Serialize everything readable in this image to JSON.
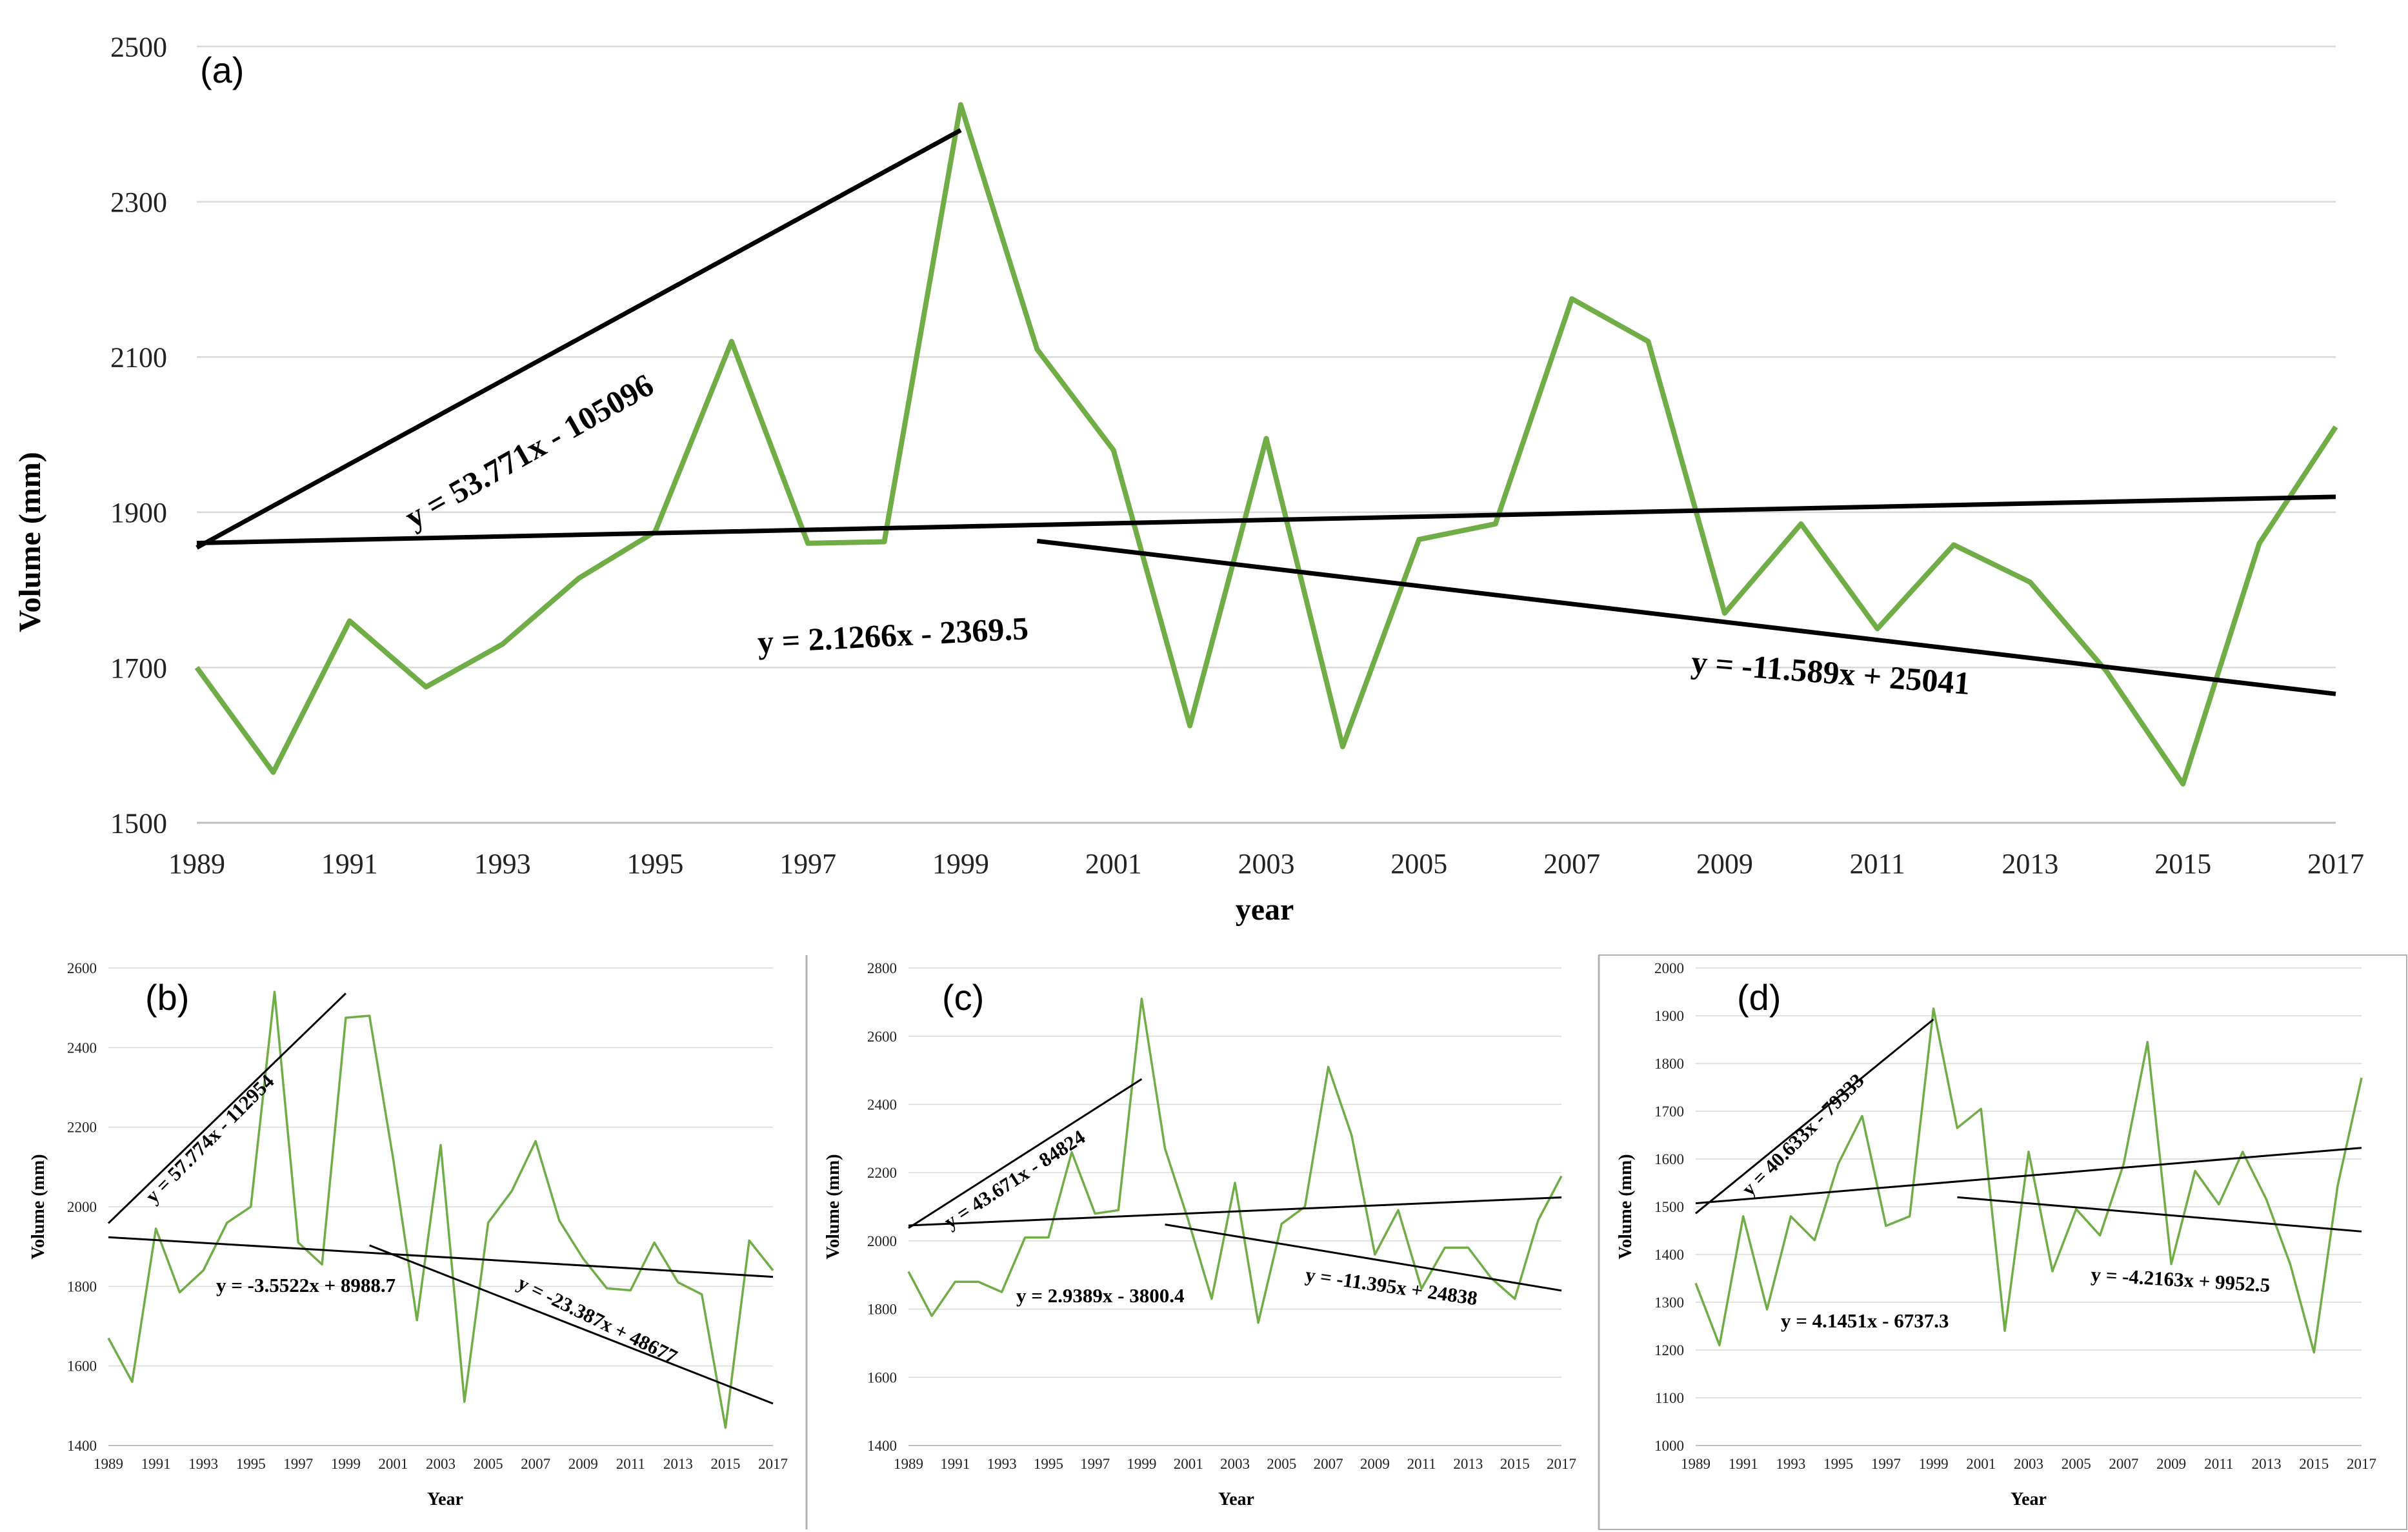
{
  "figure": {
    "panel_tags": [
      "(a)",
      "(b)",
      "(c)",
      "(d)"
    ]
  },
  "colors": {
    "series": "#70AD47",
    "trend": "#000000",
    "grid": "#d9d9d9",
    "divider": "#b0b0b0"
  },
  "chart_data": [
    {
      "id": "a",
      "type": "line",
      "tag": "(a)",
      "xlabel": "year",
      "ylabel": "Volume  (mm)",
      "ylim": [
        1500,
        2500
      ],
      "yticks": [
        1500,
        1700,
        1900,
        2100,
        2300,
        2500
      ],
      "xlim": [
        1989,
        2017
      ],
      "xticks": [
        1989,
        1991,
        1993,
        1995,
        1997,
        1999,
        2001,
        2003,
        2005,
        2007,
        2009,
        2011,
        2013,
        2015,
        2017
      ],
      "grid": true,
      "x": [
        1989,
        1990,
        1991,
        1992,
        1993,
        1994,
        1995,
        1996,
        1997,
        1998,
        1999,
        2000,
        2001,
        2002,
        2003,
        2004,
        2005,
        2006,
        2007,
        2008,
        2009,
        2010,
        2011,
        2012,
        2013,
        2014,
        2015,
        2016,
        2017
      ],
      "values": [
        1700,
        1565,
        1760,
        1675,
        1730,
        1815,
        1875,
        2120,
        1860,
        1862,
        2425,
        2110,
        1980,
        1625,
        1995,
        1598,
        1865,
        1885,
        2175,
        2120,
        1770,
        1885,
        1750,
        1858,
        1810,
        1695,
        1550,
        1860,
        2010
      ],
      "trendlines": [
        {
          "label": "y = 53.771x - 105096",
          "slope": 53.771,
          "intercept": -105096,
          "x_from": 1989,
          "x_to": 1999
        },
        {
          "label": "y = 2.1266x - 2369.5",
          "slope": 2.1266,
          "intercept": -2369.5,
          "x_from": 1989,
          "x_to": 2017
        },
        {
          "label": "y = -11.589x + 25041",
          "slope": -11.589,
          "intercept": 25041,
          "x_from": 2000,
          "x_to": 2017
        }
      ]
    },
    {
      "id": "b",
      "type": "line",
      "tag": "(b)",
      "xlabel": "Year",
      "ylabel": "Volume (mm)",
      "ylim": [
        1400,
        2600
      ],
      "yticks": [
        1400,
        1600,
        1800,
        2000,
        2200,
        2400,
        2600
      ],
      "xlim": [
        1989,
        2017
      ],
      "xticks": [
        1989,
        1991,
        1993,
        1995,
        1997,
        1999,
        2001,
        2003,
        2005,
        2007,
        2009,
        2011,
        2013,
        2015,
        2017
      ],
      "grid": true,
      "x": [
        1989,
        1990,
        1991,
        1992,
        1993,
        1994,
        1995,
        1996,
        1997,
        1998,
        1999,
        2000,
        2001,
        2002,
        2003,
        2004,
        2005,
        2006,
        2007,
        2008,
        2009,
        2010,
        2011,
        2012,
        2013,
        2014,
        2015,
        2016,
        2017
      ],
      "values": [
        1670,
        1560,
        1945,
        1785,
        1840,
        1960,
        2000,
        2540,
        1910,
        1855,
        2475,
        2480,
        2120,
        1715,
        2155,
        1510,
        1960,
        2040,
        2165,
        1965,
        1870,
        1795,
        1790,
        1910,
        1810,
        1780,
        1445,
        1915,
        1840
      ],
      "trendlines": [
        {
          "label": "y = 57.774x - 112954",
          "slope": 57.774,
          "intercept": -112954,
          "x_from": 1989,
          "x_to": 1999
        },
        {
          "label": "y = -3.5522x + 8988.7",
          "slope": -3.5522,
          "intercept": 8988.7,
          "x_from": 1989,
          "x_to": 2017
        },
        {
          "label": "y = -23.387x + 48677",
          "slope": -23.387,
          "intercept": 48677,
          "x_from": 2000,
          "x_to": 2017
        }
      ]
    },
    {
      "id": "c",
      "type": "line",
      "tag": "(c)",
      "xlabel": "Year",
      "ylabel": "Volume (mm)",
      "ylim": [
        1400,
        2800
      ],
      "yticks": [
        1400,
        1600,
        1800,
        2000,
        2200,
        2400,
        2600,
        2800
      ],
      "xlim": [
        1989,
        2017
      ],
      "xticks": [
        1989,
        1991,
        1993,
        1995,
        1997,
        1999,
        2001,
        2003,
        2005,
        2007,
        2009,
        2011,
        2013,
        2015,
        2017
      ],
      "grid": true,
      "x": [
        1989,
        1990,
        1991,
        1992,
        1993,
        1994,
        1995,
        1996,
        1997,
        1998,
        1999,
        2000,
        2001,
        2002,
        2003,
        2004,
        2005,
        2006,
        2007,
        2008,
        2009,
        2010,
        2011,
        2012,
        2013,
        2014,
        2015,
        2016,
        2017
      ],
      "values": [
        1910,
        1780,
        1880,
        1880,
        1850,
        2010,
        2010,
        2260,
        2080,
        2090,
        2710,
        2270,
        2060,
        1830,
        2170,
        1760,
        2050,
        2100,
        2510,
        2310,
        1960,
        2090,
        1860,
        1980,
        1980,
        1890,
        1830,
        2060,
        2190
      ],
      "trendlines": [
        {
          "label": "y = 43.671x - 84824",
          "slope": 43.671,
          "intercept": -84824,
          "x_from": 1989,
          "x_to": 1999
        },
        {
          "label": "y = 2.9389x - 3800.4",
          "slope": 2.9389,
          "intercept": -3800.4,
          "x_from": 1989,
          "x_to": 2017
        },
        {
          "label": "y = -11.395x + 24838",
          "slope": -11.395,
          "intercept": 24838,
          "x_from": 2000,
          "x_to": 2017
        }
      ]
    },
    {
      "id": "d",
      "type": "line",
      "tag": "(d)",
      "xlabel": "Year",
      "ylabel": "Volume (mm)",
      "ylim": [
        1000,
        2000
      ],
      "yticks": [
        1000,
        1100,
        1200,
        1300,
        1400,
        1500,
        1600,
        1700,
        1800,
        1900,
        2000
      ],
      "xlim": [
        1989,
        2017
      ],
      "xticks": [
        1989,
        1991,
        1993,
        1995,
        1997,
        1999,
        2001,
        2003,
        2005,
        2007,
        2009,
        2011,
        2013,
        2015,
        2017
      ],
      "grid": true,
      "x": [
        1989,
        1990,
        1991,
        1992,
        1993,
        1994,
        1995,
        1996,
        1997,
        1998,
        1999,
        2000,
        2001,
        2002,
        2003,
        2004,
        2005,
        2006,
        2007,
        2008,
        2009,
        2010,
        2011,
        2012,
        2013,
        2014,
        2015,
        2016,
        2017
      ],
      "values": [
        1340,
        1210,
        1480,
        1285,
        1480,
        1430,
        1590,
        1690,
        1460,
        1480,
        1915,
        1665,
        1705,
        1240,
        1615,
        1365,
        1495,
        1440,
        1590,
        1845,
        1380,
        1575,
        1505,
        1615,
        1515,
        1380,
        1195,
        1545,
        1770
      ],
      "trendlines": [
        {
          "label": "y = 40.633x - 79333",
          "slope": 40.633,
          "intercept": -79333,
          "x_from": 1989,
          "x_to": 1999
        },
        {
          "label": "y = 4.1451x - 6737.3",
          "slope": 4.1451,
          "intercept": -6737.3,
          "x_from": 1989,
          "x_to": 2017
        },
        {
          "label": "y = -4.2163x + 9952.5",
          "slope": -4.2163,
          "intercept": 9952.5,
          "x_from": 2000,
          "x_to": 2017
        }
      ]
    }
  ]
}
